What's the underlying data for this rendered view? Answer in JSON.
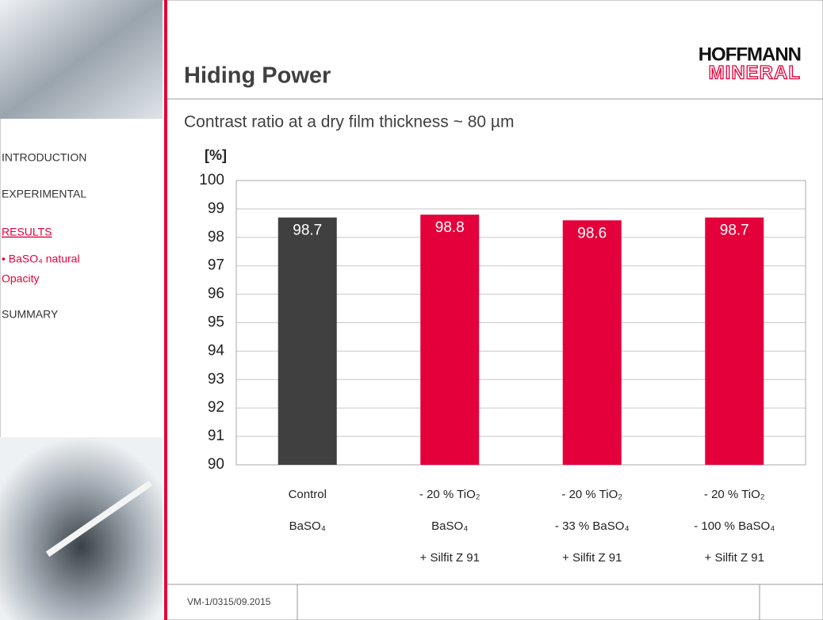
{
  "header": {
    "title": "Hiding Power",
    "logo": [
      "HOFFMANN",
      "MINERAL"
    ]
  },
  "sidebar": {
    "items": [
      "INTRODUCTION",
      "EXPERIMENTAL",
      "RESULTS",
      "• BaSO₄ natural",
      "Opacity",
      "SUMMARY"
    ]
  },
  "footer": {
    "code": "VM-1/0315/09.2015"
  },
  "chart_data": {
    "type": "bar",
    "title": "Contrast ratio at a dry film thickness ~ 80 µm",
    "y_label": "[%]",
    "categories": [
      [
        "Control",
        "BaSO₄"
      ],
      [
        "- 20 % TiO₂",
        "BaSO₄",
        "+ Silfit Z 91"
      ],
      [
        "- 20 % TiO₂",
        "- 33 % BaSO₄",
        "+ Silfit Z 91"
      ],
      [
        "- 20 % TiO₂",
        "- 100 % BaSO₄",
        "+ Silfit Z 91"
      ]
    ],
    "values": [
      98.7,
      98.8,
      98.6,
      98.7
    ],
    "colors": [
      "#404040",
      "#e4003a",
      "#e4003a",
      "#e4003a"
    ],
    "ylim": [
      90,
      100
    ],
    "yticks": [
      90,
      91,
      92,
      93,
      94,
      95,
      96,
      97,
      98,
      99,
      100
    ],
    "grid": true
  }
}
